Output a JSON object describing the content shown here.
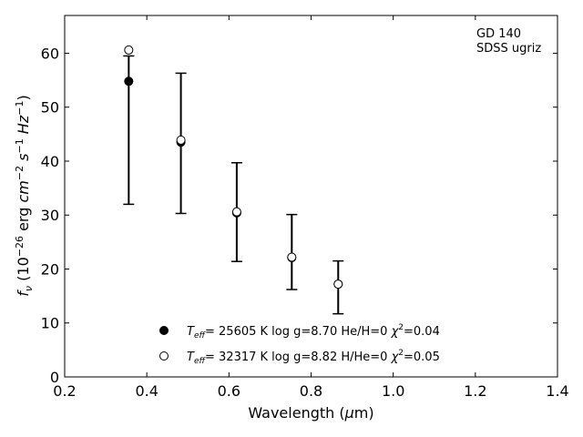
{
  "chart_data": {
    "type": "scatter",
    "x_axis": {
      "label_parts": [
        "Wavelength (",
        "μ",
        "m)"
      ],
      "lim": [
        0.2,
        1.4
      ],
      "ticks": [
        0.2,
        0.4,
        0.6,
        0.8,
        1.0,
        1.2,
        1.4
      ],
      "tick_labels": [
        "0.2",
        "0.4",
        "0.6",
        "0.8",
        "1.0",
        "1.2",
        "1.4"
      ]
    },
    "y_axis": {
      "label_parts": [
        "f",
        "ν",
        " (10",
        "−26",
        " erg ",
        "cm",
        "−2",
        " s",
        "−1",
        " Hz",
        "−1",
        ")"
      ],
      "lim": [
        0,
        67
      ],
      "ticks": [
        0,
        10,
        20,
        30,
        40,
        50,
        60
      ],
      "tick_labels": [
        "0",
        "10",
        "20",
        "30",
        "40",
        "50",
        "60"
      ]
    },
    "annotation": [
      "GD 140",
      "SDSS ugriz"
    ],
    "observed": {
      "x": [
        0.356,
        0.483,
        0.619,
        0.753,
        0.866
      ],
      "y_upper": [
        59.5,
        56.3,
        39.7,
        30.1,
        21.5
      ],
      "y_lower": [
        32.0,
        30.3,
        21.4,
        16.2,
        11.7
      ]
    },
    "series": [
      {
        "marker": "filled",
        "x": [
          0.356,
          0.483,
          0.619,
          0.753,
          0.866
        ],
        "y": [
          54.8,
          43.5,
          30.4,
          22.1,
          17.2
        ],
        "legend": {
          "t": "T",
          "sub": "eff",
          "rest": "= 25605 K  log g=8.70  He/H=0  ",
          "chi": "χ",
          "sup": "2",
          "chi_val": "=0.04"
        }
      },
      {
        "marker": "open",
        "x": [
          0.356,
          0.483,
          0.619,
          0.753,
          0.866
        ],
        "y": [
          60.6,
          43.9,
          30.6,
          22.2,
          17.2
        ],
        "legend": {
          "t": "T",
          "sub": "eff",
          "rest": "= 32317 K  log g=8.82  H/He=0  ",
          "chi": "χ",
          "sup": "2",
          "chi_val": "=0.05"
        }
      }
    ],
    "legend_position": "bottom-center",
    "grid": false
  }
}
